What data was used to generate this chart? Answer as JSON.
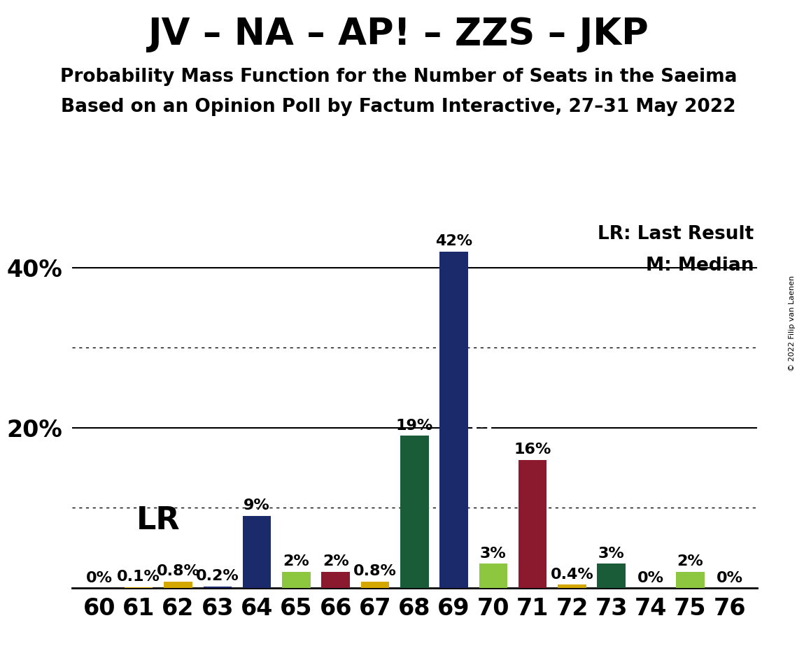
{
  "title": "JV – NA – AP! – ZZS – JKP",
  "subtitle1": "Probability Mass Function for the Number of Seats in the Saeima",
  "subtitle2": "Based on an Opinion Poll by Factum Interactive, 27–31 May 2022",
  "copyright": "© 2022 Filip van Laenen",
  "legend_lr": "LR: Last Result",
  "legend_m": "M: Median",
  "seats": [
    60,
    61,
    62,
    63,
    64,
    65,
    66,
    67,
    68,
    69,
    70,
    71,
    72,
    73,
    74,
    75,
    76
  ],
  "values": [
    0.0,
    0.1,
    0.8,
    0.2,
    9.0,
    2.0,
    2.0,
    0.8,
    19.0,
    42.0,
    3.0,
    16.0,
    0.4,
    3.0,
    0.0,
    2.0,
    0.0
  ],
  "bar_colors": [
    "#1b2a6b",
    "#d4a800",
    "#d4a800",
    "#1b2a6b",
    "#1b2a6b",
    "#8dc63f",
    "#8b1a2e",
    "#d4a800",
    "#1a5c38",
    "#1b2a6b",
    "#8dc63f",
    "#8b1a2e",
    "#d4a800",
    "#1a5c38",
    "#1b2a6b",
    "#8dc63f",
    "#1b2a6b"
  ],
  "labels": [
    "0%",
    "0.1%",
    "0.8%",
    "0.2%",
    "9%",
    "2%",
    "2%",
    "0.8%",
    "19%",
    "42%",
    "3%",
    "16%",
    "0.4%",
    "3%",
    "0%",
    "2%",
    "0%"
  ],
  "lr_seat": 61,
  "median_seat": 69,
  "ylim": [
    0,
    46
  ],
  "solid_hlines": [
    20,
    40
  ],
  "dotted_hlines": [
    10,
    30
  ],
  "ytick_positions": [
    20,
    40
  ],
  "ytick_labels": [
    "20%",
    "40%"
  ],
  "background_color": "#ffffff",
  "title_fontsize": 38,
  "subtitle_fontsize": 19,
  "axis_tick_fontsize": 24,
  "bar_label_fontsize": 16,
  "lr_text_fontsize": 32,
  "legend_fontsize": 19,
  "median_label_fontsize": 24,
  "copyright_fontsize": 8
}
